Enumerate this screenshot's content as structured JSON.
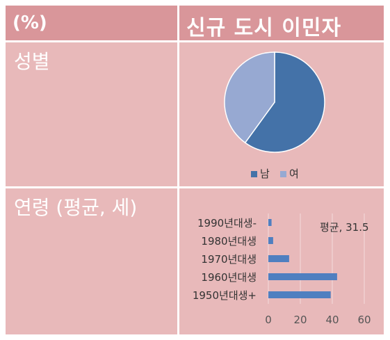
{
  "header": {
    "left_label": "(%)",
    "right_label": "신규 도시 이민자"
  },
  "rows": {
    "gender_label": "성별",
    "age_label": "연령 (평균, 세)"
  },
  "colors": {
    "header_bg": "#d9969a",
    "cell_bg": "#e8b9ba",
    "male": "#4472a8",
    "female": "#97a9d2",
    "bar": "#4f7fc0"
  },
  "chart_data": [
    {
      "type": "pie",
      "labels": [
        "남",
        "여"
      ],
      "values": [
        60,
        40
      ],
      "legend": "bottom"
    },
    {
      "type": "bar",
      "orientation": "horizontal",
      "categories": [
        "1990년대생-",
        "1980년대생",
        "1970년대생",
        "1960년대생",
        "1950년대생+"
      ],
      "values": [
        2,
        3,
        13,
        43,
        39
      ],
      "xlim": [
        0,
        60
      ],
      "xticks": [
        0,
        20,
        40,
        60
      ],
      "grid": true,
      "annotation": "평균, 31.5"
    }
  ]
}
